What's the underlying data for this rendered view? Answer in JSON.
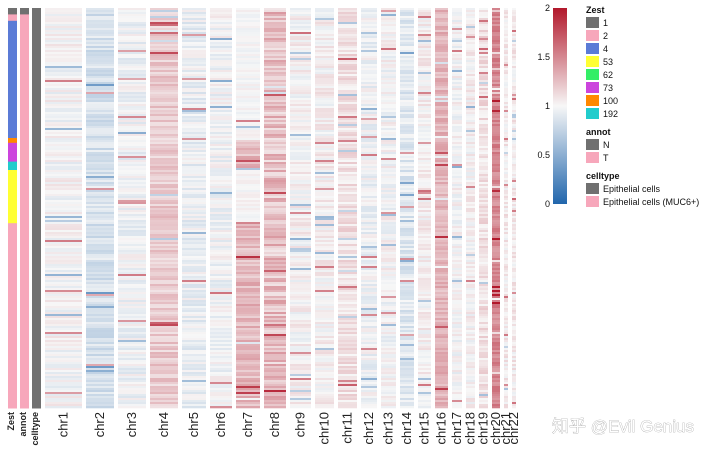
{
  "chart_data": {
    "type": "heatmap",
    "columns": [
      "chr1",
      "chr2",
      "chr3",
      "chr4",
      "chr5",
      "chr6",
      "chr7",
      "chr8",
      "chr9",
      "chr10",
      "chr11",
      "chr12",
      "chr13",
      "chr14",
      "chr15",
      "chr16",
      "chr17",
      "chr18",
      "chr19",
      "chr20",
      "chr21",
      "chr22"
    ],
    "column_widths": [
      37,
      28,
      28,
      28,
      24,
      22,
      24,
      22,
      21,
      19,
      19,
      16,
      15,
      14,
      13,
      13,
      10,
      9,
      9,
      8,
      4,
      4
    ],
    "column_mean_level": [
      1.0,
      0.85,
      0.97,
      1.2,
      0.95,
      0.98,
      1.07,
      1.22,
      1.02,
      1.03,
      1.1,
      0.97,
      1.0,
      0.9,
      1.03,
      1.3,
      1.0,
      1.02,
      1.1,
      1.5,
      1.05,
      1.05
    ],
    "annotation_columns": [
      "Zest",
      "annot",
      "celltype"
    ],
    "zest_blocks": [
      {
        "label": "1",
        "from": 0,
        "to": 0.016
      },
      {
        "label": "2",
        "from": 0.016,
        "to": 0.032
      },
      {
        "label": "4",
        "from": 0.032,
        "to": 0.325
      },
      {
        "label": "100",
        "from": 0.325,
        "to": 0.337
      },
      {
        "label": "73",
        "from": 0.337,
        "to": 0.384
      },
      {
        "label": "192",
        "from": 0.384,
        "to": 0.405
      },
      {
        "label": "53",
        "from": 0.405,
        "to": 0.538
      },
      {
        "label": "2",
        "from": 0.538,
        "to": 1.0
      }
    ],
    "annot_blocks": [
      {
        "label": "N",
        "from": 0,
        "to": 0.016
      },
      {
        "label": "T",
        "from": 0.016,
        "to": 1.0
      }
    ],
    "celltype_blocks": [
      {
        "label": "Epithelial cells",
        "from": 0,
        "to": 1.0
      }
    ],
    "chr7_gain_segments": [
      [
        0.33,
        0.4
      ],
      [
        0.54,
        1.0
      ]
    ],
    "chr8_gain_segment": [
      0.0,
      1.0
    ],
    "colorscale": {
      "min": 0,
      "max": 2,
      "mid": 1,
      "ticks": [
        0,
        0.5,
        1,
        1.5,
        2
      ],
      "low": "#2166ac",
      "mid_color": "#f7f7f7",
      "high": "#b2182b"
    }
  },
  "legend": {
    "zest": {
      "title": "Zest",
      "items": [
        {
          "label": "1",
          "color": "#707070"
        },
        {
          "label": "2",
          "color": "#f7a7bb"
        },
        {
          "label": "4",
          "color": "#5b7bd6"
        },
        {
          "label": "53",
          "color": "#ffff33"
        },
        {
          "label": "62",
          "color": "#33ee66"
        },
        {
          "label": "73",
          "color": "#cc44dd"
        },
        {
          "label": "100",
          "color": "#ff8800"
        },
        {
          "label": "192",
          "color": "#22cccc"
        }
      ]
    },
    "annot": {
      "title": "annot",
      "items": [
        {
          "label": "N",
          "color": "#707070"
        },
        {
          "label": "T",
          "color": "#f7a7bb"
        }
      ]
    },
    "celltype": {
      "title": "celltype",
      "items": [
        {
          "label": "Epithelial cells",
          "color": "#707070"
        },
        {
          "label": "Epithelial cells (MUC6+)",
          "color": "#f7a7bb"
        }
      ]
    }
  },
  "watermark": "知乎 @Evil Genius"
}
